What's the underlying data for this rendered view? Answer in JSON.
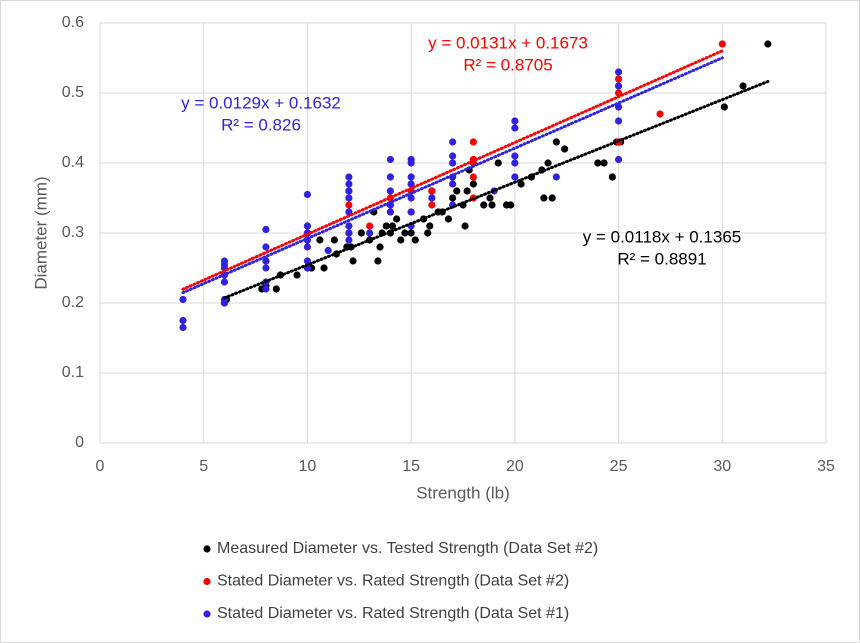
{
  "chart_data": {
    "type": "scatter",
    "x_label": "Strength (lb)",
    "y_label": "Diameter (mm)",
    "xlim": [
      0,
      35
    ],
    "xticks": [
      0,
      5,
      10,
      15,
      20,
      25,
      30,
      35
    ],
    "ylim": [
      0,
      0.6
    ],
    "yticks": [
      0,
      0.1,
      0.2,
      0.3,
      0.4,
      0.5,
      0.6
    ],
    "grid": true,
    "legend": "bottom",
    "series": [
      {
        "name": "Measured Diameter vs. Tested Strength (Data Set #2)",
        "color": "#000000",
        "x": [
          6,
          6.1,
          7.8,
          8,
          8.5,
          8.7,
          9.5,
          10,
          10.2,
          10.6,
          10.8,
          11.3,
          11.4,
          11.9,
          12.1,
          12.2,
          12.6,
          13,
          13.2,
          13.4,
          13.5,
          13.6,
          13.8,
          14,
          14.1,
          14.3,
          14.5,
          14.7,
          15,
          15.2,
          15.6,
          15.8,
          15.9,
          16,
          16.3,
          16.5,
          16.8,
          17,
          17.2,
          17.5,
          17.6,
          17.7,
          17.8,
          18,
          18.5,
          18.8,
          18.9,
          19.2,
          19.6,
          19.8,
          20.3,
          20.8,
          21.3,
          21.4,
          21.6,
          21.8,
          22,
          22.4,
          24,
          24.3,
          24.7,
          24.9,
          25.1,
          30.1,
          31,
          32.2
        ],
        "values": [
          0.2,
          0.205,
          0.22,
          0.225,
          0.22,
          0.24,
          0.24,
          0.25,
          0.25,
          0.29,
          0.25,
          0.29,
          0.27,
          0.28,
          0.28,
          0.26,
          0.3,
          0.29,
          0.33,
          0.26,
          0.28,
          0.3,
          0.31,
          0.3,
          0.31,
          0.32,
          0.29,
          0.3,
          0.3,
          0.29,
          0.32,
          0.3,
          0.31,
          0.36,
          0.33,
          0.33,
          0.32,
          0.35,
          0.36,
          0.34,
          0.31,
          0.36,
          0.39,
          0.37,
          0.34,
          0.35,
          0.34,
          0.4,
          0.34,
          0.34,
          0.37,
          0.38,
          0.39,
          0.35,
          0.4,
          0.35,
          0.43,
          0.42,
          0.4,
          0.4,
          0.38,
          0.43,
          0.43,
          0.48,
          0.51,
          0.57
        ],
        "trendline": {
          "label": "y = 0.0118x + 0.1365",
          "r2_label": "R² = 0.8891",
          "slope": 0.0118,
          "intercept": 0.1365,
          "xrange": [
            6,
            32.2
          ]
        }
      },
      {
        "name": "Stated Diameter vs. Rated Strength (Data Set #2)",
        "color": "#ff0000",
        "x": [
          8,
          10,
          10,
          10,
          12,
          12,
          12,
          13,
          14,
          14,
          15,
          15,
          15,
          16,
          16,
          18,
          18,
          18,
          18,
          18,
          25,
          25,
          25,
          27,
          30
        ],
        "values": [
          0.26,
          0.29,
          0.3,
          0.31,
          0.3,
          0.34,
          0.36,
          0.31,
          0.33,
          0.35,
          0.33,
          0.36,
          0.37,
          0.36,
          0.34,
          0.35,
          0.38,
          0.4,
          0.405,
          0.43,
          0.43,
          0.5,
          0.52,
          0.47,
          0.57
        ],
        "trendline": {
          "label": "y = 0.0131x + 0.1673",
          "r2_label": "R² = 0.8705",
          "slope": 0.0131,
          "intercept": 0.1673,
          "xrange": [
            4,
            30
          ]
        }
      },
      {
        "name": "Stated Diameter vs. Rated Strength (Data Set #1)",
        "color": "#2f22e0",
        "x": [
          4,
          4,
          4,
          6,
          6,
          6,
          6,
          6,
          6,
          6,
          8,
          8,
          8,
          8,
          8,
          8,
          10,
          10,
          10,
          10,
          10,
          10,
          10,
          11,
          12,
          12,
          12,
          12,
          12,
          12,
          12,
          12,
          13,
          14,
          14,
          14,
          14,
          14,
          15,
          15,
          15,
          15,
          15,
          15,
          15,
          16,
          17,
          17,
          17,
          17,
          17,
          17,
          19,
          20,
          20,
          20,
          20,
          20,
          22,
          25,
          25,
          25,
          25,
          25
        ],
        "values": [
          0.205,
          0.175,
          0.165,
          0.2,
          0.205,
          0.23,
          0.24,
          0.25,
          0.255,
          0.26,
          0.22,
          0.23,
          0.25,
          0.26,
          0.28,
          0.305,
          0.25,
          0.26,
          0.28,
          0.29,
          0.3,
          0.31,
          0.355,
          0.275,
          0.29,
          0.3,
          0.31,
          0.33,
          0.35,
          0.36,
          0.37,
          0.38,
          0.3,
          0.33,
          0.34,
          0.36,
          0.38,
          0.405,
          0.31,
          0.33,
          0.35,
          0.37,
          0.38,
          0.4,
          0.405,
          0.35,
          0.34,
          0.37,
          0.38,
          0.4,
          0.41,
          0.43,
          0.36,
          0.38,
          0.4,
          0.41,
          0.45,
          0.46,
          0.38,
          0.405,
          0.46,
          0.48,
          0.51,
          0.53
        ],
        "trendline": {
          "label": "y = 0.0129x + 0.1632",
          "r2_label": "R² = 0.826",
          "slope": 0.0129,
          "intercept": 0.1632,
          "xrange": [
            4,
            30
          ]
        }
      }
    ]
  }
}
